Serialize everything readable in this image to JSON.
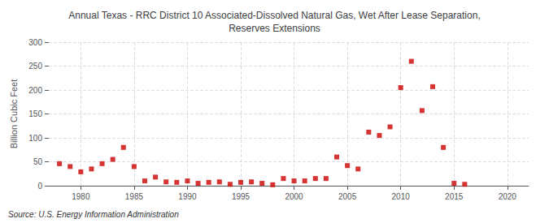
{
  "chart_data": {
    "type": "scatter",
    "title": "Annual Texas - RRC District 10 Associated-Dissolved Natural Gas, Wet After Lease Separation,\nReserves Extensions",
    "ylabel": "Billion Cubic Feet",
    "annotation": "Source: U.S. Energy Information Administration",
    "x": [
      1978,
      1979,
      1980,
      1981,
      1982,
      1983,
      1984,
      1985,
      1986,
      1987,
      1988,
      1989,
      1990,
      1991,
      1992,
      1993,
      1994,
      1995,
      1996,
      1997,
      1998,
      1999,
      2000,
      2001,
      2002,
      2003,
      2004,
      2005,
      2006,
      2007,
      2008,
      2009,
      2010,
      2011,
      2012,
      2013,
      2014,
      2015,
      2016
    ],
    "values": [
      46,
      40,
      29,
      35,
      46,
      55,
      80,
      40,
      10,
      18,
      8,
      7,
      10,
      5,
      7,
      8,
      3,
      7,
      8,
      5,
      2,
      15,
      10,
      10,
      15,
      15,
      60,
      42,
      35,
      112,
      105,
      123,
      205,
      260,
      157,
      207,
      80,
      5,
      3
    ],
    "color": "#cc0000",
    "marker": "square",
    "xlim": [
      1977,
      2022
    ],
    "xticks": [
      1980,
      1985,
      1990,
      1995,
      2000,
      2005,
      2010,
      2015,
      2020
    ],
    "ylim": [
      0,
      300
    ],
    "yticks": [
      0,
      50,
      100,
      150,
      200,
      250,
      300
    ],
    "grid": true
  }
}
